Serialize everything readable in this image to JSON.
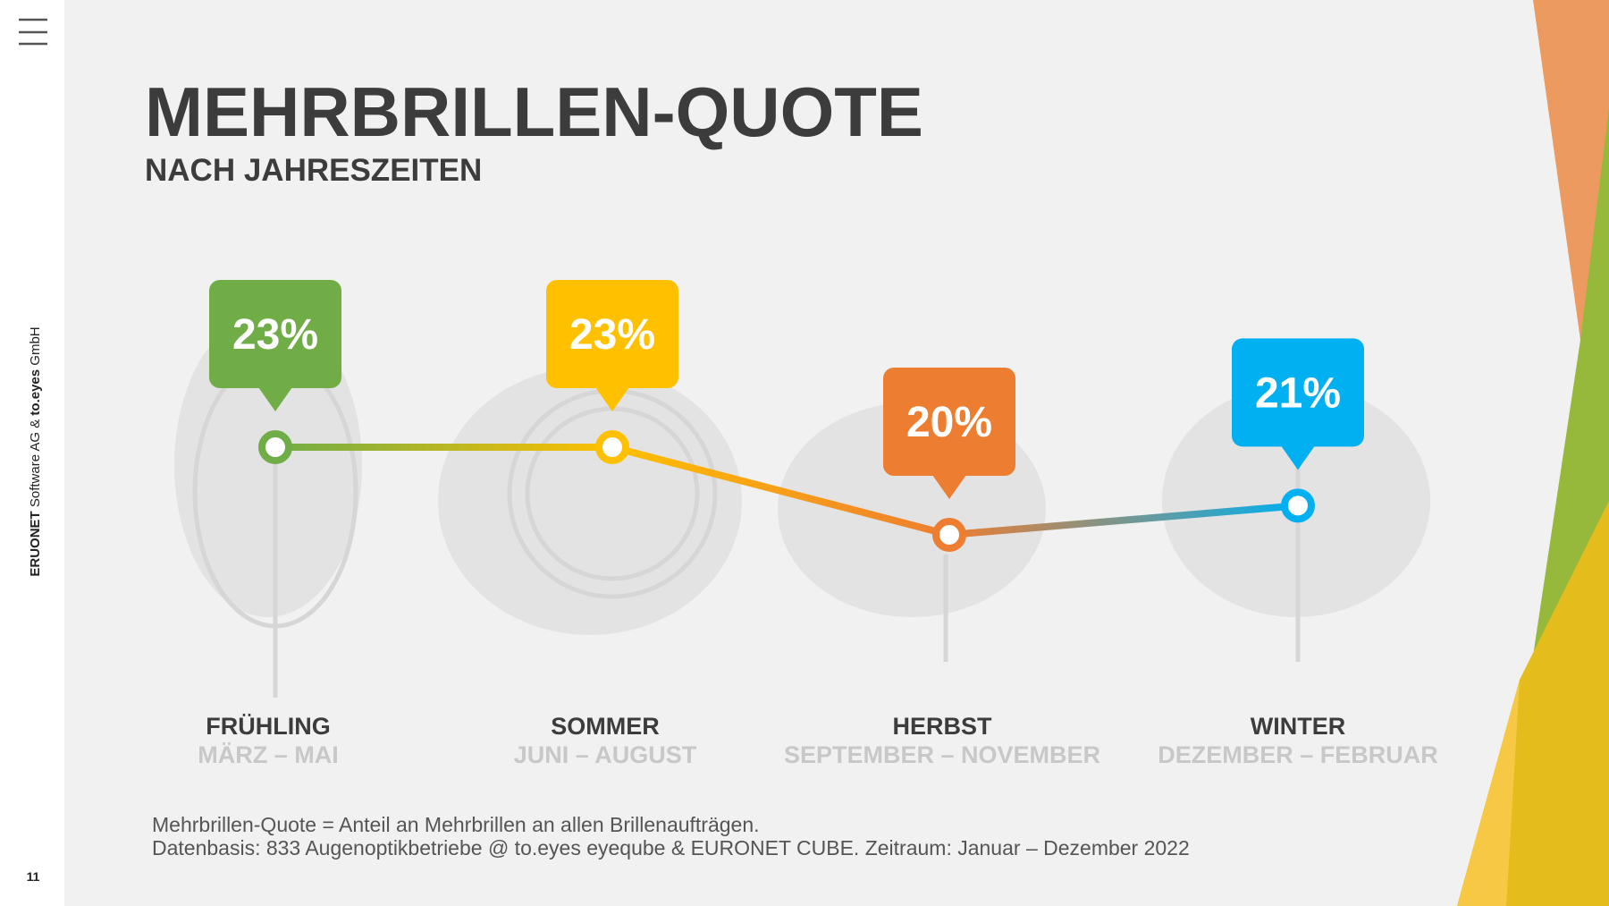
{
  "sidebar": {
    "brand": "ERUONET",
    "brand_rest": " Software AG & ",
    "partner": "to.eyes",
    "partner_rest": " GmbH",
    "page": "11"
  },
  "chart_data": {
    "type": "line",
    "title": "MEHRBRILLEN-QUOTE",
    "subtitle": "NACH JAHRESZEITEN",
    "categories": [
      "FRÜHLING",
      "SOMMER",
      "HERBST",
      "WINTER"
    ],
    "periods": [
      "MÄRZ – MAI",
      "JUNI – AUGUST",
      "SEPTEMBER – NOVEMBER",
      "DEZEMBER – FEBRUAR"
    ],
    "values": [
      23,
      23,
      20,
      21
    ],
    "value_labels": [
      "23%",
      "23%",
      "20%",
      "21%"
    ],
    "colors": [
      "#70ad47",
      "#ffc000",
      "#ed7d31",
      "#00b0f0"
    ]
  },
  "footnotes": [
    "Mehrbrillen-Quote = Anteil an Mehrbrillen an allen Brillenaufträgen.",
    "Datenbasis: 833 Augenoptikbetriebe @ to.eyes eyeqube & EURONET CUBE. Zeitraum: Januar – Dezember 2022"
  ]
}
